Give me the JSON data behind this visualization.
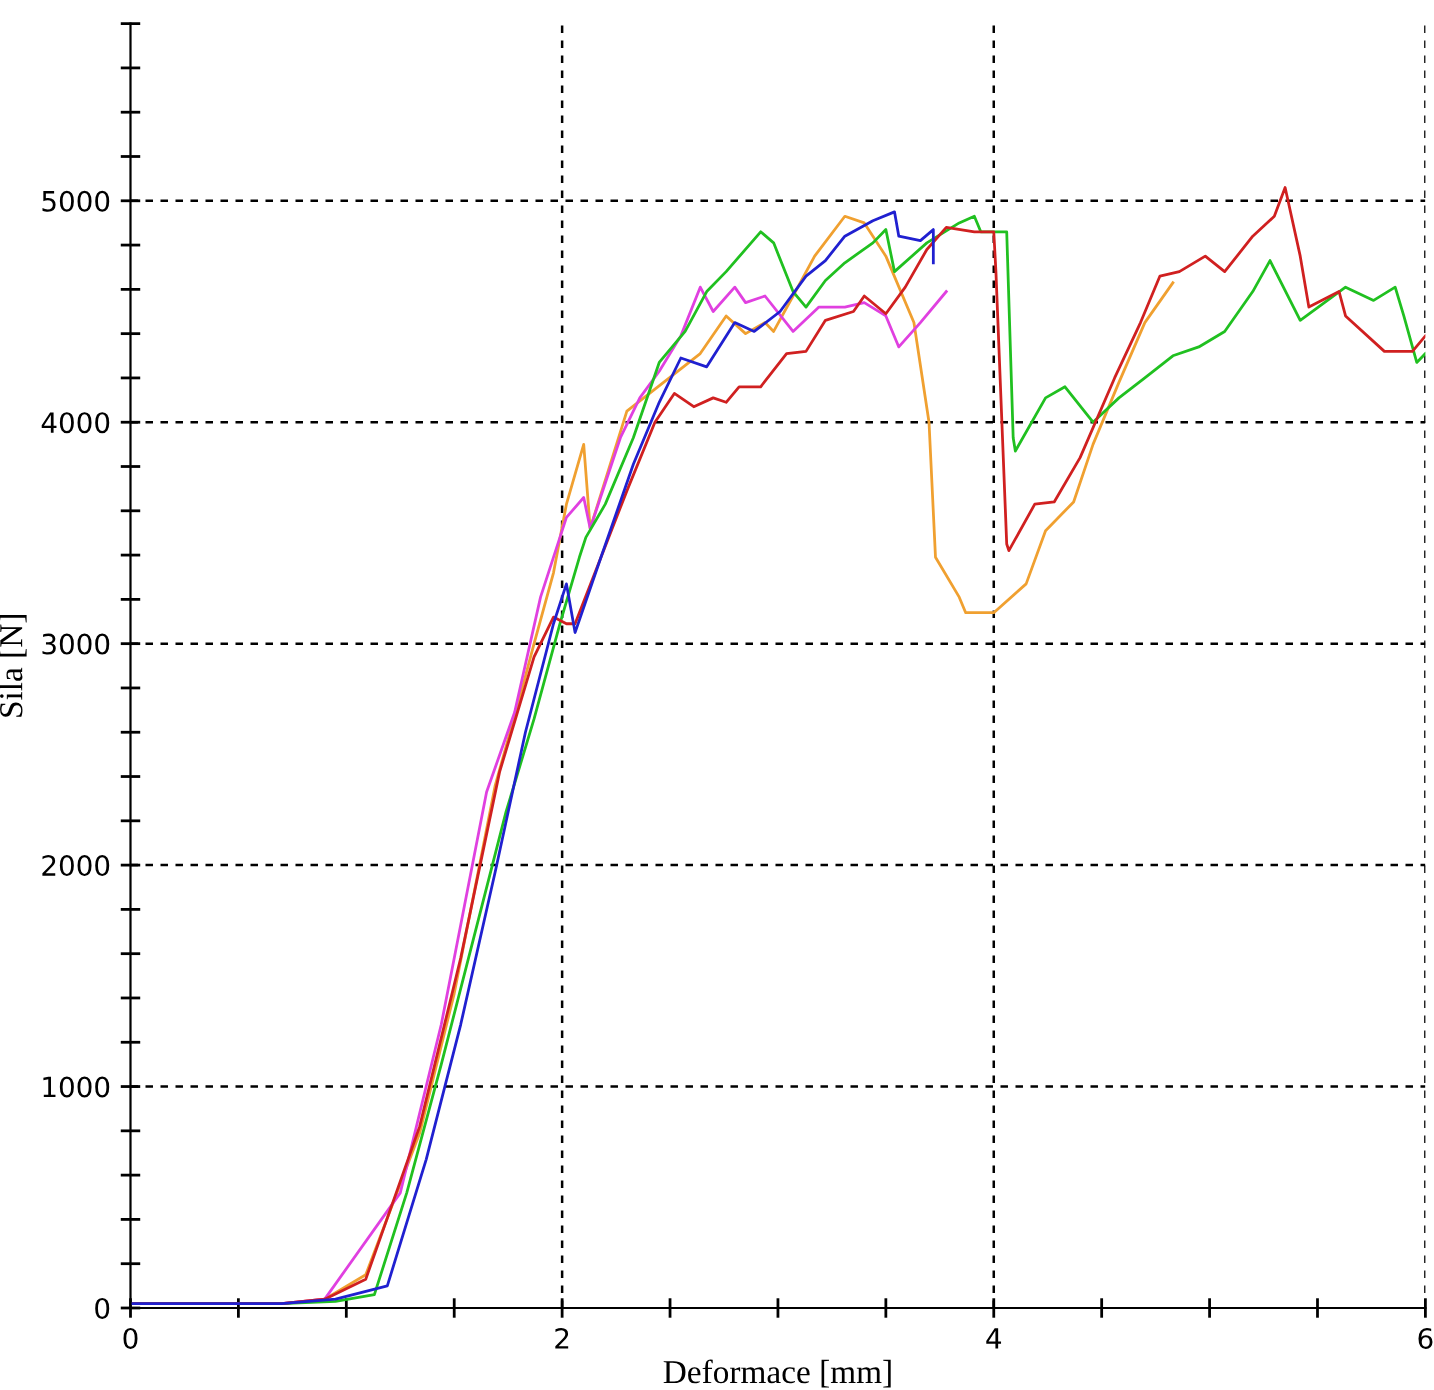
{
  "chart_data": {
    "type": "line",
    "xlabel": "Deformace [mm]",
    "ylabel": "Sila [N]",
    "xlim": [
      0,
      6
    ],
    "ylim": [
      0,
      5800
    ],
    "xticks": [
      0,
      {
        "value": 0.5,
        "label": null
      },
      {
        "value": 1,
        "label": null
      },
      {
        "value": 1.5,
        "label": null
      },
      2,
      {
        "value": 2.5,
        "label": null
      },
      {
        "value": 3,
        "label": null
      },
      {
        "value": 3.5,
        "label": null
      },
      4,
      {
        "value": 4.5,
        "label": null
      },
      {
        "value": 5,
        "label": null
      },
      {
        "value": 5.5,
        "label": null
      },
      6
    ],
    "yticks": [
      0,
      {
        "value": 200,
        "label": null
      },
      {
        "value": 400,
        "label": null
      },
      {
        "value": 600,
        "label": null
      },
      {
        "value": 800,
        "label": null
      },
      1000,
      {
        "value": 1200,
        "label": null
      },
      {
        "value": 1400,
        "label": null
      },
      {
        "value": 1600,
        "label": null
      },
      {
        "value": 1800,
        "label": null
      },
      2000,
      {
        "value": 2200,
        "label": null
      },
      {
        "value": 2400,
        "label": null
      },
      {
        "value": 2600,
        "label": null
      },
      {
        "value": 2800,
        "label": null
      },
      3000,
      {
        "value": 3200,
        "label": null
      },
      {
        "value": 3400,
        "label": null
      },
      {
        "value": 3600,
        "label": null
      },
      {
        "value": 3800,
        "label": null
      },
      4000,
      {
        "value": 4200,
        "label": null
      },
      {
        "value": 4400,
        "label": null
      },
      {
        "value": 4600,
        "label": null
      },
      {
        "value": 4800,
        "label": null
      },
      5000,
      {
        "value": 5200,
        "label": null
      },
      {
        "value": 5400,
        "label": null
      },
      {
        "value": 5600,
        "label": null
      },
      {
        "value": 5800,
        "label": null
      }
    ],
    "grid": true,
    "line_style": "solid",
    "marker": "none",
    "series": [
      {
        "color": "#f0a030",
        "x": [
          0,
          0.7,
          0.9,
          1.09,
          1.34,
          1.5,
          1.69,
          1.81,
          1.87,
          1.96,
          2.02,
          2.1,
          2.13,
          2.3,
          2.64,
          2.76,
          2.85,
          2.94,
          2.98,
          3.07,
          3.17,
          3.31,
          3.4,
          3.5,
          3.63,
          3.7,
          3.73,
          3.84,
          3.87,
          4.0,
          4.15,
          4.24,
          4.37,
          4.46,
          4.58,
          4.7,
          4.83
        ],
        "values": [
          20,
          20,
          40,
          150,
          790,
          1420,
          2360,
          2780,
          3000,
          3320,
          3630,
          3900,
          3520,
          4050,
          4310,
          4480,
          4400,
          4450,
          4410,
          4570,
          4750,
          4930,
          4900,
          4750,
          4450,
          4000,
          3390,
          3210,
          3140,
          3140,
          3270,
          3510,
          3640,
          3900,
          4180,
          4450,
          4630
        ]
      },
      {
        "color": "#e040e0",
        "x": [
          0,
          0.7,
          0.9,
          1.25,
          1.44,
          1.53,
          1.65,
          1.78,
          1.9,
          2.02,
          2.1,
          2.13,
          2.27,
          2.36,
          2.45,
          2.55,
          2.64,
          2.7,
          2.8,
          2.85,
          2.94,
          3.07,
          3.19,
          3.31,
          3.4,
          3.5,
          3.56,
          3.66,
          3.78
        ],
        "values": [
          20,
          20,
          40,
          520,
          1280,
          1730,
          2330,
          2690,
          3210,
          3570,
          3660,
          3520,
          3930,
          4110,
          4230,
          4390,
          4610,
          4500,
          4610,
          4540,
          4570,
          4410,
          4520,
          4520,
          4540,
          4480,
          4340,
          4450,
          4590
        ]
      },
      {
        "color": "#20c020",
        "x": [
          0,
          0.7,
          0.95,
          1.13,
          1.28,
          1.44,
          1.59,
          1.74,
          1.87,
          1.99,
          2.08,
          2.11,
          2.2,
          2.33,
          2.45,
          2.57,
          2.67,
          2.76,
          2.92,
          2.98,
          3.07,
          3.13,
          3.22,
          3.31,
          3.44,
          3.5,
          3.54,
          3.69,
          3.84,
          3.91,
          3.94,
          4.06,
          4.09,
          4.1,
          4.24,
          4.33,
          4.46,
          4.58,
          4.7,
          4.83,
          4.95,
          5.07,
          5.2,
          5.28,
          5.42,
          5.63,
          5.76,
          5.86,
          5.9,
          5.96,
          6.0
        ],
        "values": [
          20,
          20,
          30,
          60,
          520,
          1100,
          1670,
          2240,
          2660,
          3090,
          3390,
          3480,
          3630,
          3930,
          4270,
          4410,
          4590,
          4680,
          4860,
          4810,
          4590,
          4520,
          4640,
          4720,
          4810,
          4870,
          4680,
          4810,
          4900,
          4930,
          4860,
          4860,
          3930,
          3870,
          4110,
          4160,
          4000,
          4110,
          4200,
          4300,
          4340,
          4410,
          4590,
          4730,
          4460,
          4610,
          4550,
          4610,
          4480,
          4270,
          4310
        ]
      },
      {
        "color": "#d02020",
        "x": [
          0,
          0.7,
          0.9,
          1.09,
          1.34,
          1.53,
          1.71,
          1.87,
          1.96,
          2.02,
          2.06,
          2.3,
          2.43,
          2.52,
          2.61,
          2.7,
          2.76,
          2.82,
          2.92,
          3.04,
          3.13,
          3.22,
          3.35,
          3.4,
          3.5,
          3.59,
          3.69,
          3.78,
          3.91,
          4.0,
          4.01,
          4.06,
          4.07,
          4.19,
          4.28,
          4.4,
          4.56,
          4.68,
          4.77,
          4.86,
          4.98,
          5.07,
          5.2,
          5.3,
          5.35,
          5.42,
          5.46,
          5.6,
          5.63,
          5.81,
          5.94,
          6.0
        ],
        "values": [
          20,
          20,
          40,
          130,
          820,
          1580,
          2420,
          2940,
          3120,
          3090,
          3090,
          3690,
          4000,
          4130,
          4070,
          4110,
          4090,
          4160,
          4160,
          4310,
          4320,
          4460,
          4500,
          4570,
          4490,
          4610,
          4780,
          4880,
          4860,
          4860,
          4680,
          3450,
          3420,
          3630,
          3640,
          3840,
          4200,
          4450,
          4660,
          4680,
          4750,
          4680,
          4840,
          4930,
          5060,
          4750,
          4520,
          4590,
          4480,
          4320,
          4320,
          4390
        ]
      },
      {
        "color": "#2020d0",
        "x": [
          0,
          0.7,
          0.95,
          1.19,
          1.37,
          1.53,
          1.69,
          1.83,
          1.96,
          2.02,
          2.06,
          2.18,
          2.33,
          2.45,
          2.55,
          2.67,
          2.8,
          2.89,
          3.01,
          3.13,
          3.22,
          3.31,
          3.44,
          3.54,
          3.56,
          3.66,
          3.72,
          3.72
        ],
        "values": [
          20,
          20,
          40,
          100,
          670,
          1280,
          1970,
          2600,
          3090,
          3270,
          3050,
          3390,
          3810,
          4090,
          4290,
          4250,
          4450,
          4410,
          4500,
          4660,
          4730,
          4840,
          4910,
          4950,
          4840,
          4820,
          4870,
          4720
        ]
      }
    ]
  }
}
